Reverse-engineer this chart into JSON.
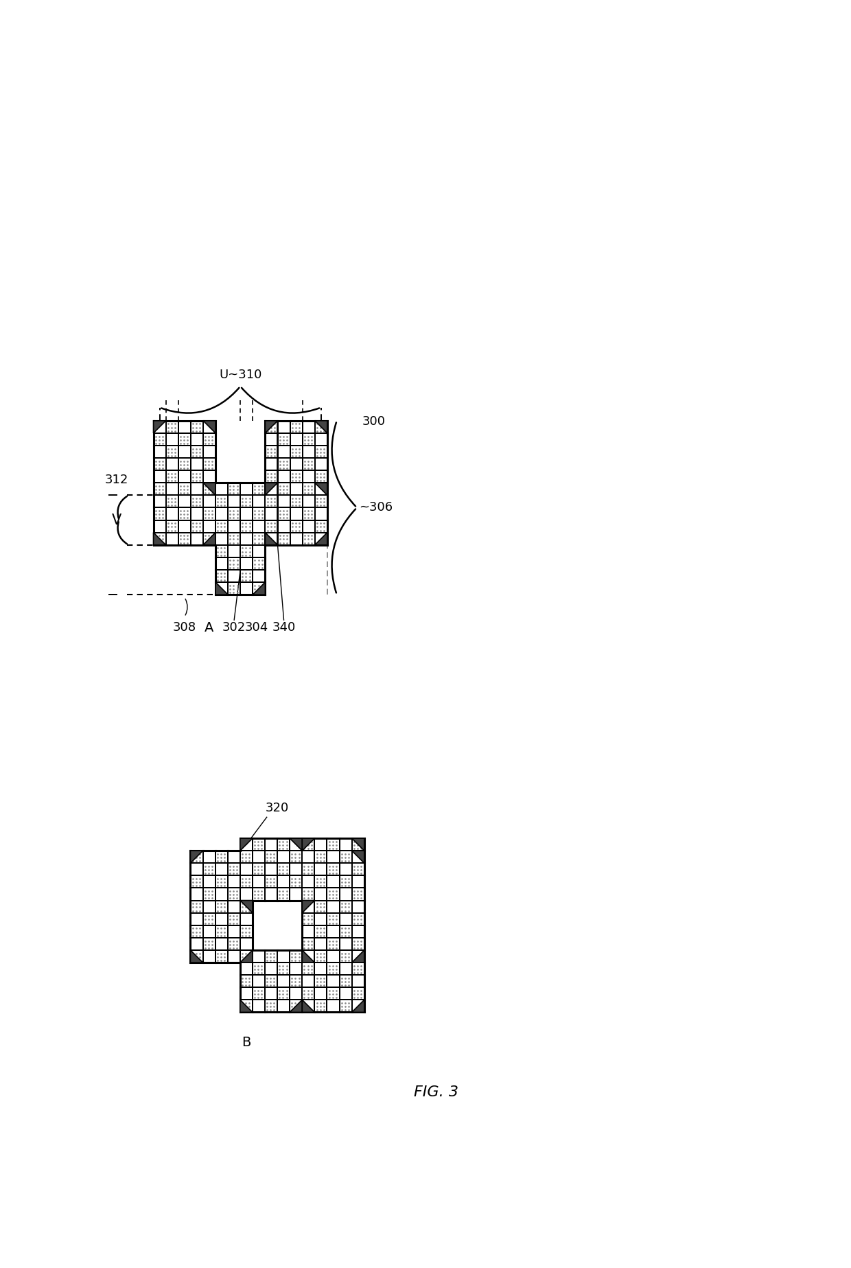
{
  "fig_width": 12.4,
  "fig_height": 18.47,
  "bg_color": "#ffffff",
  "line_color": "#000000",
  "dark_color": "#444444",
  "white_color": "#ffffff",
  "dot_color": "#888888",
  "label_fontsize": 13,
  "annotations": {
    "U_310": "U~310",
    "V_312": "V",
    "label_300": "300",
    "label_302": "302",
    "label_304": "304",
    "label_306": "~306",
    "label_308": "308",
    "label_312": "312",
    "label_340": "340",
    "label_320": "320",
    "fig_A": "A",
    "fig_B": "B",
    "fig_label": "FIG. 3"
  },
  "cell_size": 0.235,
  "fig_A_ox": 0.85,
  "fig_A_oy": 10.1,
  "fig_B_ox": 1.55,
  "fig_B_oy": 2.2
}
